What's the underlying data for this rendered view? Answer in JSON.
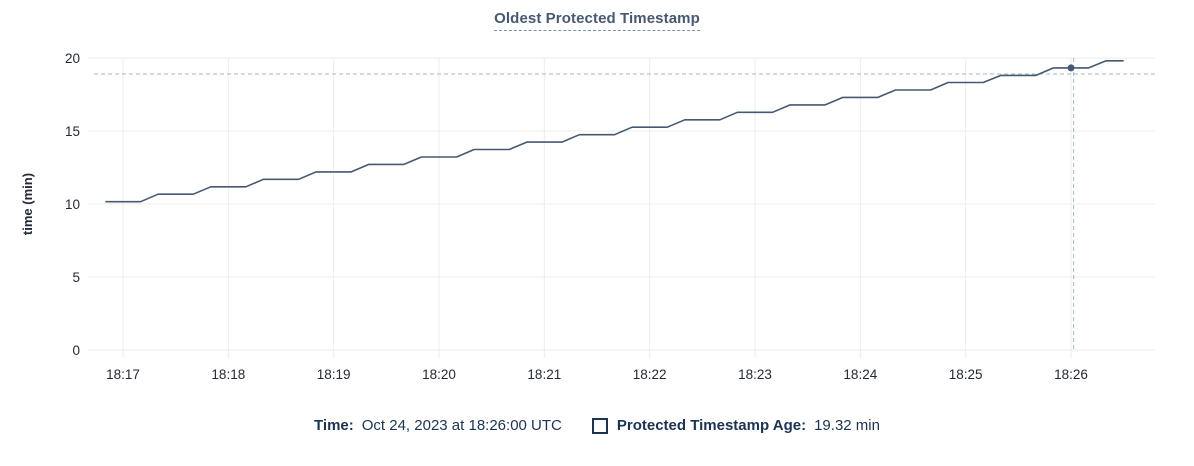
{
  "chart_data": {
    "type": "line",
    "title": "Oldest Protected Timestamp",
    "ylabel": "time (min)",
    "ylim": [
      0,
      20
    ],
    "yticks": [
      0,
      5,
      10,
      15,
      20
    ],
    "x_ticks": [
      "18:17",
      "18:18",
      "18:19",
      "18:20",
      "18:21",
      "18:22",
      "18:23",
      "18:24",
      "18:25",
      "18:26"
    ],
    "x_unit": "seconds since 18:17:00",
    "grid": true,
    "legend_position": "bottom",
    "colors": {
      "grid": "#ececec",
      "crosshair": "#a7b9c3",
      "tick_text": "#242a35",
      "title": "#475872",
      "legend_text": "#1b3452"
    },
    "series": [
      {
        "name": "Protected Timestamp Age",
        "color": "#475872",
        "points": [
          [
            -10,
            10.16
          ],
          [
            0,
            10.16
          ],
          [
            10,
            10.16
          ],
          [
            20,
            10.67
          ],
          [
            30,
            10.67
          ],
          [
            40,
            10.67
          ],
          [
            50,
            11.18
          ],
          [
            60,
            11.18
          ],
          [
            70,
            11.18
          ],
          [
            80,
            11.69
          ],
          [
            90,
            11.69
          ],
          [
            100,
            11.69
          ],
          [
            110,
            12.2
          ],
          [
            120,
            12.2
          ],
          [
            130,
            12.2
          ],
          [
            140,
            12.71
          ],
          [
            150,
            12.71
          ],
          [
            160,
            12.71
          ],
          [
            170,
            13.22
          ],
          [
            180,
            13.22
          ],
          [
            190,
            13.22
          ],
          [
            200,
            13.73
          ],
          [
            210,
            13.73
          ],
          [
            220,
            13.73
          ],
          [
            230,
            14.24
          ],
          [
            240,
            14.24
          ],
          [
            250,
            14.24
          ],
          [
            260,
            14.75
          ],
          [
            270,
            14.75
          ],
          [
            280,
            14.75
          ],
          [
            290,
            15.26
          ],
          [
            300,
            15.26
          ],
          [
            310,
            15.26
          ],
          [
            320,
            15.77
          ],
          [
            330,
            15.77
          ],
          [
            340,
            15.77
          ],
          [
            350,
            16.28
          ],
          [
            360,
            16.28
          ],
          [
            370,
            16.28
          ],
          [
            380,
            16.79
          ],
          [
            390,
            16.79
          ],
          [
            400,
            16.79
          ],
          [
            410,
            17.3
          ],
          [
            420,
            17.3
          ],
          [
            430,
            17.3
          ],
          [
            440,
            17.81
          ],
          [
            450,
            17.81
          ],
          [
            460,
            17.81
          ],
          [
            470,
            18.32
          ],
          [
            480,
            18.32
          ],
          [
            490,
            18.32
          ],
          [
            500,
            18.81
          ],
          [
            510,
            18.81
          ],
          [
            520,
            18.81
          ],
          [
            530,
            19.32
          ],
          [
            540,
            19.32
          ],
          [
            550,
            19.32
          ],
          [
            560,
            19.81
          ],
          [
            570,
            19.81
          ]
        ]
      }
    ],
    "hover": {
      "crosshair_t": 541.5,
      "crosshair_value": 18.9,
      "point": [
        540,
        19.32
      ]
    }
  },
  "legend": {
    "time_label": "Time:",
    "time_value": "Oct 24, 2023 at 18:26:00 UTC",
    "series_label": "Protected Timestamp Age:",
    "series_value": "19.32 min"
  }
}
